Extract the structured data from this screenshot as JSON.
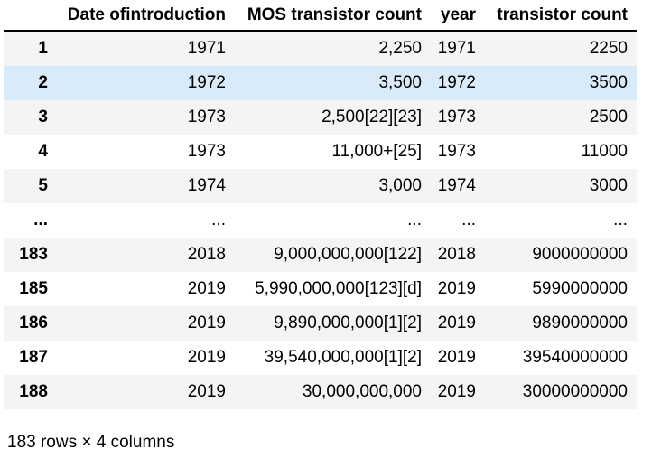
{
  "table": {
    "columns": [
      "Date ofintroduction",
      "MOS transistor count",
      "year",
      "transistor count"
    ],
    "index_header": "",
    "rows": [
      {
        "index": "1",
        "cells": [
          "1971",
          "2,250",
          "1971",
          "2250"
        ],
        "highlight": false
      },
      {
        "index": "2",
        "cells": [
          "1972",
          "3,500",
          "1972",
          "3500"
        ],
        "highlight": true
      },
      {
        "index": "3",
        "cells": [
          "1973",
          "2,500[22][23]",
          "1973",
          "2500"
        ],
        "highlight": false
      },
      {
        "index": "4",
        "cells": [
          "1973",
          "11,000+[25]",
          "1973",
          "11000"
        ],
        "highlight": false
      },
      {
        "index": "5",
        "cells": [
          "1974",
          "3,000",
          "1974",
          "3000"
        ],
        "highlight": false
      },
      {
        "index": "...",
        "cells": [
          "...",
          "...",
          "...",
          "..."
        ],
        "highlight": false
      },
      {
        "index": "183",
        "cells": [
          "2018",
          "9,000,000,000[122]",
          "2018",
          "9000000000"
        ],
        "highlight": false
      },
      {
        "index": "185",
        "cells": [
          "2019",
          "5,990,000,000[123][d]",
          "2019",
          "5990000000"
        ],
        "highlight": false
      },
      {
        "index": "186",
        "cells": [
          "2019",
          "9,890,000,000[1][2]",
          "2019",
          "9890000000"
        ],
        "highlight": false
      },
      {
        "index": "187",
        "cells": [
          "2019",
          "39,540,000,000[1][2]",
          "2019",
          "39540000000"
        ],
        "highlight": false
      },
      {
        "index": "188",
        "cells": [
          "2019",
          "30,000,000,000",
          "2019",
          "30000000000"
        ],
        "highlight": false
      }
    ],
    "footer": "183 rows × 4 columns"
  },
  "colors": {
    "stripe": "#f4f4f4",
    "highlight": "#d9eaf9",
    "header_border": "#000000",
    "text": "#000000"
  }
}
